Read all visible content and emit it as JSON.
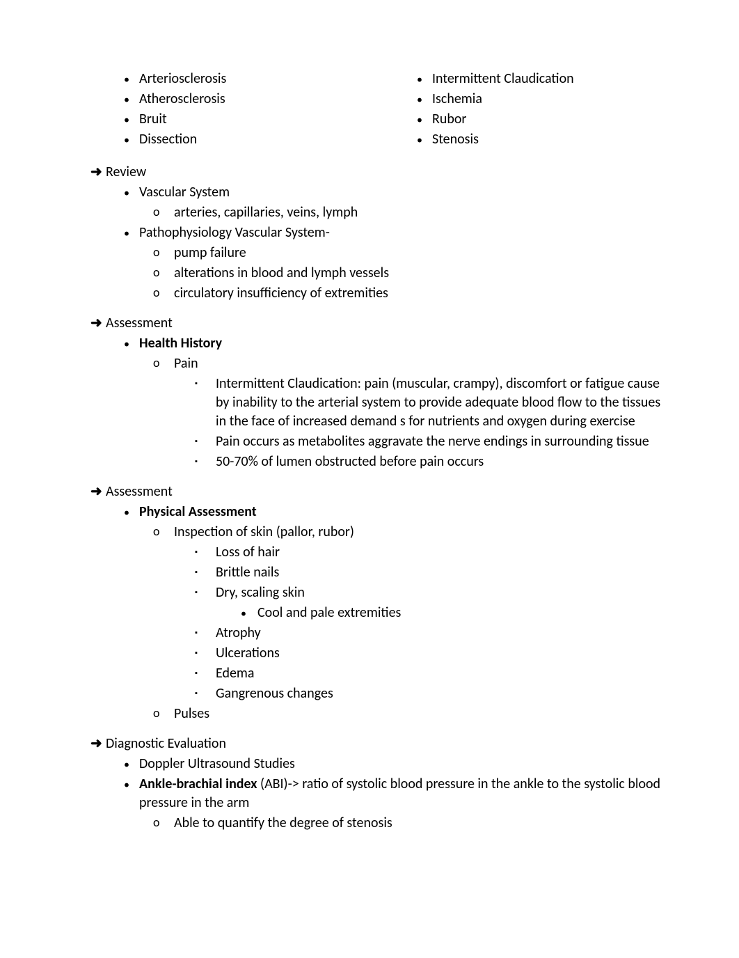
{
  "terms": {
    "left": [
      "Arteriosclerosis",
      "Atherosclerosis",
      "Bruit",
      "Dissection"
    ],
    "right": [
      "Intermittent Claudication",
      "Ischemia",
      "Rubor",
      "Stenosis"
    ]
  },
  "review": {
    "heading": "Review",
    "items": [
      {
        "label": "Vascular System",
        "subs": [
          "arteries, capillaries, veins, lymph"
        ]
      },
      {
        "label": "Pathophysiology Vascular System-",
        "subs": [
          "pump failure",
          "alterations in blood and lymph vessels",
          "circulatory insufficiency of extremities"
        ]
      }
    ]
  },
  "assessment1": {
    "heading": "Assessment",
    "topic": "Health History",
    "sub": "Pain",
    "points": [
      "Intermittent Claudication: pain (muscular, crampy), discomfort or fatigue cause by inability to the arterial system to provide adequate blood flow to the tissues in the face of increased demand s for nutrients and oxygen during exercise",
      "Pain occurs as metabolites aggravate the nerve endings in surrounding tissue",
      "50-70% of lumen obstructed before pain occurs"
    ]
  },
  "assessment2": {
    "heading": "Assessment",
    "topic": "Physical Assessment",
    "sub1": "Inspection of skin (pallor, rubor)",
    "inspList": [
      "Loss of hair",
      "Brittle nails",
      "Dry, scaling skin"
    ],
    "inspSub": "Cool and pale extremities",
    "inspList2": [
      "Atrophy",
      "Ulcerations",
      "Edema",
      "Gangrenous changes"
    ],
    "sub2": "Pulses"
  },
  "diagnostic": {
    "heading": "Diagnostic Evaluation",
    "item1": "Doppler Ultrasound Studies",
    "item2bold": "Ankle-brachial index",
    "item2rest": " (ABI)-> ratio of systolic blood pressure in the ankle to the systolic blood pressure in the arm",
    "sub": "Able to quantify the degree of stenosis"
  }
}
